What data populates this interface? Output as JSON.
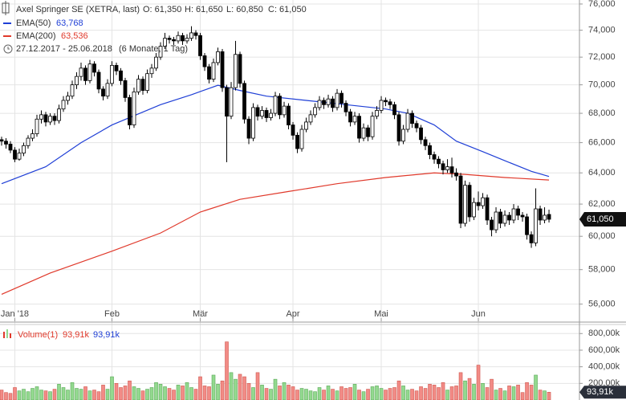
{
  "chart_data": {
    "type": "candlestick",
    "title": "Axel Springer SE (XETRA, last)",
    "quote": [
      "O: 61,350",
      "H: 61,650",
      "L: 60,850",
      "C: 61,050"
    ],
    "period": "27.12.2017 - 25.06.2018",
    "period_note": "(6 Monate, 1 Tag)",
    "log_scale": true,
    "grid": true,
    "xlim": [
      -0.364,
      130.9
    ],
    "xticks": [
      {
        "value": 3,
        "label": "Jan '18"
      },
      {
        "value": 25,
        "label": "Feb"
      },
      {
        "value": 45,
        "label": "Mär"
      },
      {
        "value": 66,
        "label": "Apr"
      },
      {
        "value": 86,
        "label": "Mai"
      },
      {
        "value": 108,
        "label": "Jun"
      }
    ],
    "ylim": [
      55.03,
      76.31
    ],
    "yticks": [
      {
        "value": 56,
        "label": "56,000"
      },
      {
        "value": 58,
        "label": "58,000"
      },
      {
        "value": 60,
        "label": "60,000"
      },
      {
        "value": 62,
        "label": "62,000"
      },
      {
        "value": 64,
        "label": "64,000"
      },
      {
        "value": 66,
        "label": "66,000"
      },
      {
        "value": 68,
        "label": "68,000"
      },
      {
        "value": 70,
        "label": "70,000"
      },
      {
        "value": 72,
        "label": "72,000"
      },
      {
        "value": 74,
        "label": "74,000"
      },
      {
        "value": 76,
        "label": "76,000"
      }
    ],
    "up_color": "#ffffff",
    "down_color": "#000000",
    "last_label": "61,050",
    "candles": [
      [
        66.2,
        66.4,
        65.8,
        66.1
      ],
      [
        66.1,
        66.3,
        65.6,
        65.9
      ],
      [
        65.9,
        66.1,
        65.3,
        65.5
      ],
      [
        65.5,
        65.7,
        64.7,
        64.9
      ],
      [
        64.9,
        65.6,
        64.8,
        65.3
      ],
      [
        65.3,
        66.0,
        65.1,
        65.8
      ],
      [
        65.8,
        66.5,
        65.6,
        66.3
      ],
      [
        66.3,
        66.9,
        66.1,
        66.6
      ],
      [
        66.6,
        67.9,
        66.4,
        67.6
      ],
      [
        67.6,
        68.2,
        67.3,
        67.9
      ],
      [
        67.9,
        68.1,
        67.1,
        67.4
      ],
      [
        67.4,
        68.0,
        67.2,
        67.8
      ],
      [
        67.8,
        68.0,
        67.2,
        67.5
      ],
      [
        67.5,
        68.6,
        67.3,
        68.3
      ],
      [
        68.3,
        69.2,
        68.1,
        68.9
      ],
      [
        68.9,
        69.5,
        68.6,
        69.2
      ],
      [
        69.2,
        70.3,
        69.0,
        70.0
      ],
      [
        70.0,
        70.9,
        69.7,
        70.6
      ],
      [
        70.6,
        71.6,
        70.3,
        71.2
      ],
      [
        71.2,
        71.4,
        70.0,
        70.3
      ],
      [
        70.3,
        71.8,
        70.1,
        71.5
      ],
      [
        71.5,
        71.7,
        70.6,
        70.9
      ],
      [
        70.9,
        71.1,
        69.4,
        69.7
      ],
      [
        69.7,
        69.9,
        68.9,
        69.2
      ],
      [
        69.2,
        70.4,
        69.0,
        70.1
      ],
      [
        70.1,
        71.7,
        69.9,
        71.4
      ],
      [
        71.4,
        71.6,
        70.7,
        71.0
      ],
      [
        71.0,
        71.2,
        70.0,
        70.3
      ],
      [
        70.3,
        70.5,
        68.8,
        69.1
      ],
      [
        69.1,
        69.3,
        66.9,
        67.2
      ],
      [
        67.2,
        69.8,
        67.0,
        69.5
      ],
      [
        69.5,
        70.7,
        69.3,
        70.4
      ],
      [
        70.4,
        70.6,
        69.3,
        69.6
      ],
      [
        69.6,
        71.1,
        69.4,
        70.8
      ],
      [
        70.8,
        71.5,
        70.5,
        71.2
      ],
      [
        71.2,
        72.3,
        71.0,
        72.0
      ],
      [
        72.0,
        73.1,
        71.8,
        72.8
      ],
      [
        72.8,
        73.8,
        72.6,
        73.4
      ],
      [
        73.4,
        73.6,
        73.0,
        73.3
      ],
      [
        73.3,
        73.5,
        72.9,
        73.2
      ],
      [
        73.2,
        73.9,
        73.0,
        73.6
      ],
      [
        73.6,
        73.8,
        72.9,
        73.2
      ],
      [
        73.2,
        73.7,
        73.0,
        73.4
      ],
      [
        73.4,
        74.3,
        73.2,
        73.8
      ],
      [
        73.8,
        74.0,
        73.3,
        73.6
      ],
      [
        73.6,
        73.8,
        71.8,
        72.1
      ],
      [
        72.1,
        72.3,
        71.0,
        71.3
      ],
      [
        71.3,
        71.5,
        70.1,
        70.4
      ],
      [
        70.4,
        71.9,
        70.2,
        71.6
      ],
      [
        71.6,
        72.7,
        71.4,
        72.4
      ],
      [
        72.4,
        72.6,
        69.5,
        69.8
      ],
      [
        69.8,
        70.0,
        64.7,
        67.8
      ],
      [
        67.8,
        70.2,
        67.6,
        69.8
      ],
      [
        69.8,
        73.2,
        69.6,
        72.2
      ],
      [
        72.2,
        72.4,
        69.8,
        70.1
      ],
      [
        70.1,
        70.3,
        67.3,
        67.6
      ],
      [
        67.6,
        67.8,
        65.9,
        66.3
      ],
      [
        66.3,
        68.7,
        66.1,
        68.4
      ],
      [
        68.4,
        68.6,
        67.5,
        67.8
      ],
      [
        67.8,
        68.5,
        67.6,
        68.2
      ],
      [
        68.2,
        68.4,
        67.4,
        67.7
      ],
      [
        67.7,
        68.3,
        67.5,
        68.0
      ],
      [
        68.0,
        69.5,
        67.8,
        69.2
      ],
      [
        69.2,
        69.4,
        67.6,
        67.9
      ],
      [
        67.9,
        68.8,
        67.7,
        68.5
      ],
      [
        68.5,
        68.7,
        66.9,
        67.2
      ],
      [
        67.2,
        67.4,
        66.2,
        66.5
      ],
      [
        66.5,
        66.7,
        65.3,
        65.6
      ],
      [
        65.6,
        67.2,
        65.4,
        66.9
      ],
      [
        66.9,
        67.7,
        66.7,
        67.4
      ],
      [
        67.4,
        68.2,
        67.2,
        67.9
      ],
      [
        67.9,
        68.7,
        67.7,
        68.4
      ],
      [
        68.4,
        69.2,
        68.2,
        68.9
      ],
      [
        68.9,
        69.1,
        68.3,
        68.6
      ],
      [
        68.6,
        69.3,
        68.4,
        69.0
      ],
      [
        69.0,
        69.2,
        68.1,
        68.4
      ],
      [
        68.4,
        69.7,
        68.2,
        69.4
      ],
      [
        69.4,
        69.6,
        68.4,
        68.7
      ],
      [
        68.7,
        68.9,
        67.8,
        68.1
      ],
      [
        68.1,
        68.3,
        67.1,
        67.4
      ],
      [
        67.4,
        68.1,
        67.2,
        67.8
      ],
      [
        67.8,
        68.0,
        66.0,
        66.3
      ],
      [
        66.3,
        67.3,
        66.1,
        67.0
      ],
      [
        67.0,
        67.2,
        66.1,
        66.4
      ],
      [
        66.4,
        68.1,
        66.2,
        67.8
      ],
      [
        67.8,
        68.5,
        67.6,
        68.2
      ],
      [
        68.2,
        69.2,
        68.0,
        68.9
      ],
      [
        68.9,
        69.1,
        68.5,
        68.8
      ],
      [
        68.8,
        69.0,
        68.3,
        68.6
      ],
      [
        68.6,
        68.8,
        67.6,
        67.9
      ],
      [
        67.9,
        68.1,
        65.8,
        66.1
      ],
      [
        66.1,
        67.2,
        65.9,
        66.9
      ],
      [
        66.9,
        68.3,
        66.7,
        68.0
      ],
      [
        68.0,
        68.2,
        67.0,
        67.3
      ],
      [
        67.3,
        67.5,
        66.7,
        67.0
      ],
      [
        67.0,
        67.2,
        65.9,
        66.2
      ],
      [
        66.2,
        66.4,
        65.5,
        65.8
      ],
      [
        65.8,
        66.0,
        64.9,
        65.2
      ],
      [
        65.2,
        65.4,
        64.6,
        64.9
      ],
      [
        64.9,
        65.1,
        64.3,
        64.6
      ],
      [
        64.6,
        64.8,
        63.9,
        64.2
      ],
      [
        64.2,
        64.9,
        64.0,
        64.4
      ],
      [
        64.4,
        65.0,
        63.7,
        64.0
      ],
      [
        64.0,
        64.3,
        63.5,
        63.8
      ],
      [
        63.8,
        64.0,
        60.5,
        60.8
      ],
      [
        60.8,
        63.5,
        60.6,
        63.2
      ],
      [
        63.2,
        63.4,
        60.9,
        61.2
      ],
      [
        61.2,
        62.4,
        61.0,
        62.1
      ],
      [
        62.1,
        62.8,
        61.6,
        61.9
      ],
      [
        61.9,
        62.7,
        61.7,
        62.4
      ],
      [
        62.4,
        62.6,
        60.7,
        61.0
      ],
      [
        61.0,
        61.2,
        60.0,
        60.4
      ],
      [
        60.4,
        61.8,
        60.2,
        61.5
      ],
      [
        61.5,
        61.7,
        60.5,
        60.8
      ],
      [
        60.8,
        61.6,
        60.6,
        61.3
      ],
      [
        61.3,
        61.5,
        60.7,
        61.0
      ],
      [
        61.0,
        62.0,
        60.8,
        61.7
      ],
      [
        61.7,
        61.9,
        61.0,
        61.3
      ],
      [
        61.3,
        61.5,
        60.9,
        61.2
      ],
      [
        61.2,
        61.4,
        59.8,
        60.1
      ],
      [
        60.1,
        60.3,
        59.3,
        59.6
      ],
      [
        59.6,
        63.0,
        59.4,
        61.7
      ],
      [
        61.7,
        61.9,
        60.7,
        61.0
      ],
      [
        61.0,
        61.8,
        60.8,
        61.3
      ],
      [
        61.35,
        61.65,
        60.85,
        61.05
      ]
    ],
    "series": [
      {
        "name": "EMA(50)",
        "color": "#1f3fd6",
        "value_label": "63,768",
        "x": [
          0,
          10,
          18,
          25,
          36,
          43,
          49,
          54,
          60,
          69,
          78,
          87,
          92,
          98,
          103,
          109,
          114,
          120,
          124
        ],
        "values": [
          63.3,
          64.4,
          66.0,
          67.2,
          68.6,
          69.3,
          69.97,
          69.6,
          69.2,
          68.9,
          68.6,
          68.3,
          68.0,
          67.2,
          66.1,
          65.4,
          64.8,
          64.1,
          63.768
        ]
      },
      {
        "name": "EMA(200)",
        "color": "#e0392b",
        "value_label": "63,536",
        "x": [
          0,
          11,
          25,
          36,
          45,
          54,
          65,
          76,
          87,
          98,
          105,
          114,
          124
        ],
        "values": [
          56.56,
          57.8,
          59.1,
          60.2,
          61.5,
          62.3,
          62.8,
          63.3,
          63.7,
          64.0,
          63.9,
          63.7,
          63.536
        ]
      }
    ],
    "volume": {
      "name": "Volume(1)",
      "legend_labels": [
        "93,91k",
        "93,91k"
      ],
      "last_label": "93,91k",
      "up_color": "#93d98f",
      "down_color": "#f28b86",
      "ylim": [
        0,
        909
      ],
      "yticks": [
        {
          "value": 200,
          "label": "200,00k"
        },
        {
          "value": 400,
          "label": "400,00k"
        },
        {
          "value": 600,
          "label": "600,00k"
        },
        {
          "value": 800,
          "label": "800,00k"
        }
      ],
      "values": [
        120,
        90,
        80,
        150,
        110,
        130,
        100,
        140,
        160,
        120,
        110,
        100,
        130,
        190,
        150,
        120,
        210,
        140,
        130,
        160,
        110,
        120,
        100,
        180,
        130,
        280,
        200,
        150,
        170,
        230,
        160,
        140,
        110,
        130,
        150,
        210,
        190,
        160,
        140,
        120,
        180,
        170,
        210,
        150,
        130,
        280,
        170,
        160,
        300,
        190,
        230,
        700,
        330,
        250,
        310,
        280,
        200,
        150,
        330,
        180,
        140,
        130,
        250,
        170,
        210,
        180,
        160,
        120,
        140,
        130,
        110,
        100,
        150,
        120,
        170,
        130,
        110,
        160,
        140,
        150,
        190,
        120,
        100,
        130,
        160,
        170,
        140,
        120,
        140,
        150,
        230,
        170,
        120,
        130,
        110,
        160,
        140,
        190,
        180,
        150,
        210,
        120,
        160,
        170,
        330,
        230,
        260,
        190,
        420,
        200,
        150,
        250,
        120,
        140,
        110,
        170,
        160,
        180,
        90,
        210,
        180,
        300,
        120,
        110,
        93.91
      ]
    }
  }
}
